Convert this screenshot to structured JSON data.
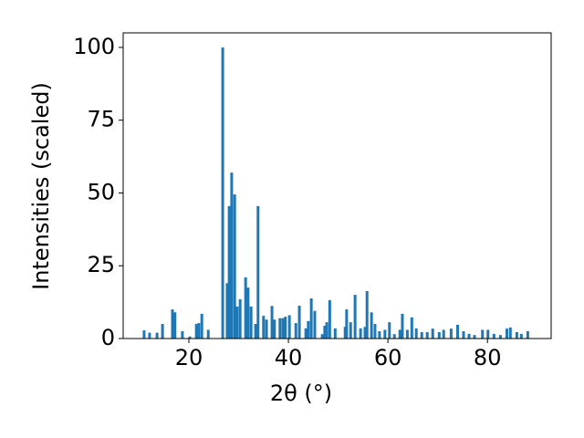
{
  "chart_data": {
    "type": "bar",
    "xlabel": "2θ (°)",
    "ylabel": "Intensities (scaled)",
    "color": "#1f77b4",
    "x": [
      11.0,
      12.1,
      13.6,
      14.7,
      16.7,
      17.2,
      18.7,
      20.2,
      21.5,
      22.0,
      22.6,
      23.9,
      26.8,
      27.7,
      28.1,
      28.6,
      29.2,
      29.7,
      30.3,
      31.4,
      31.9,
      32.5,
      33.4,
      33.9,
      35.0,
      35.6,
      36.7,
      37.2,
      38.3,
      38.9,
      39.4,
      40.2,
      41.5,
      42.2,
      43.5,
      44.0,
      44.6,
      45.3,
      46.8,
      47.3,
      47.7,
      48.3,
      49.4,
      51.4,
      51.7,
      52.5,
      53.4,
      54.5,
      55.4,
      55.8,
      56.7,
      57.4,
      58.3,
      59.4,
      60.3,
      61.3,
      62.4,
      62.9,
      63.9,
      64.8,
      65.7,
      66.8,
      67.9,
      69.0,
      70.3,
      71.2,
      72.7,
      74.0,
      75.2,
      76.3,
      77.4,
      79.0,
      80.1,
      81.3,
      82.6,
      83.9,
      84.6,
      85.9,
      86.8,
      88.1
    ],
    "values": [
      2.8,
      2,
      2,
      5,
      10,
      9,
      2.5,
      0.7,
      5,
      5.3,
      8.5,
      3,
      100,
      19,
      45.5,
      57,
      49.5,
      11,
      13.5,
      21,
      17.5,
      11,
      5,
      45.5,
      7.8,
      6.5,
      11.2,
      6.5,
      7,
      7,
      7.5,
      8,
      5.3,
      11.3,
      3.5,
      6,
      13.8,
      9.5,
      1.5,
      4.4,
      5.6,
      13.2,
      3.5,
      4,
      10,
      5.6,
      15,
      3.5,
      4,
      16.3,
      9,
      5,
      2.5,
      3,
      5.6,
      1.5,
      3,
      8.5,
      3,
      7.3,
      3.5,
      2.2,
      2.2,
      3.4,
      2.2,
      3,
      3.4,
      4.7,
      2.5,
      1.6,
      1.2,
      3,
      3,
      1.6,
      1.2,
      3.4,
      3.8,
      2.2,
      1.6,
      2.5
    ],
    "xlim": [
      6.8,
      92.8
    ],
    "ylim": [
      0,
      105
    ],
    "xticks": [
      20,
      40,
      60,
      80
    ],
    "yticks": [
      0,
      25,
      50,
      75,
      100
    ]
  }
}
